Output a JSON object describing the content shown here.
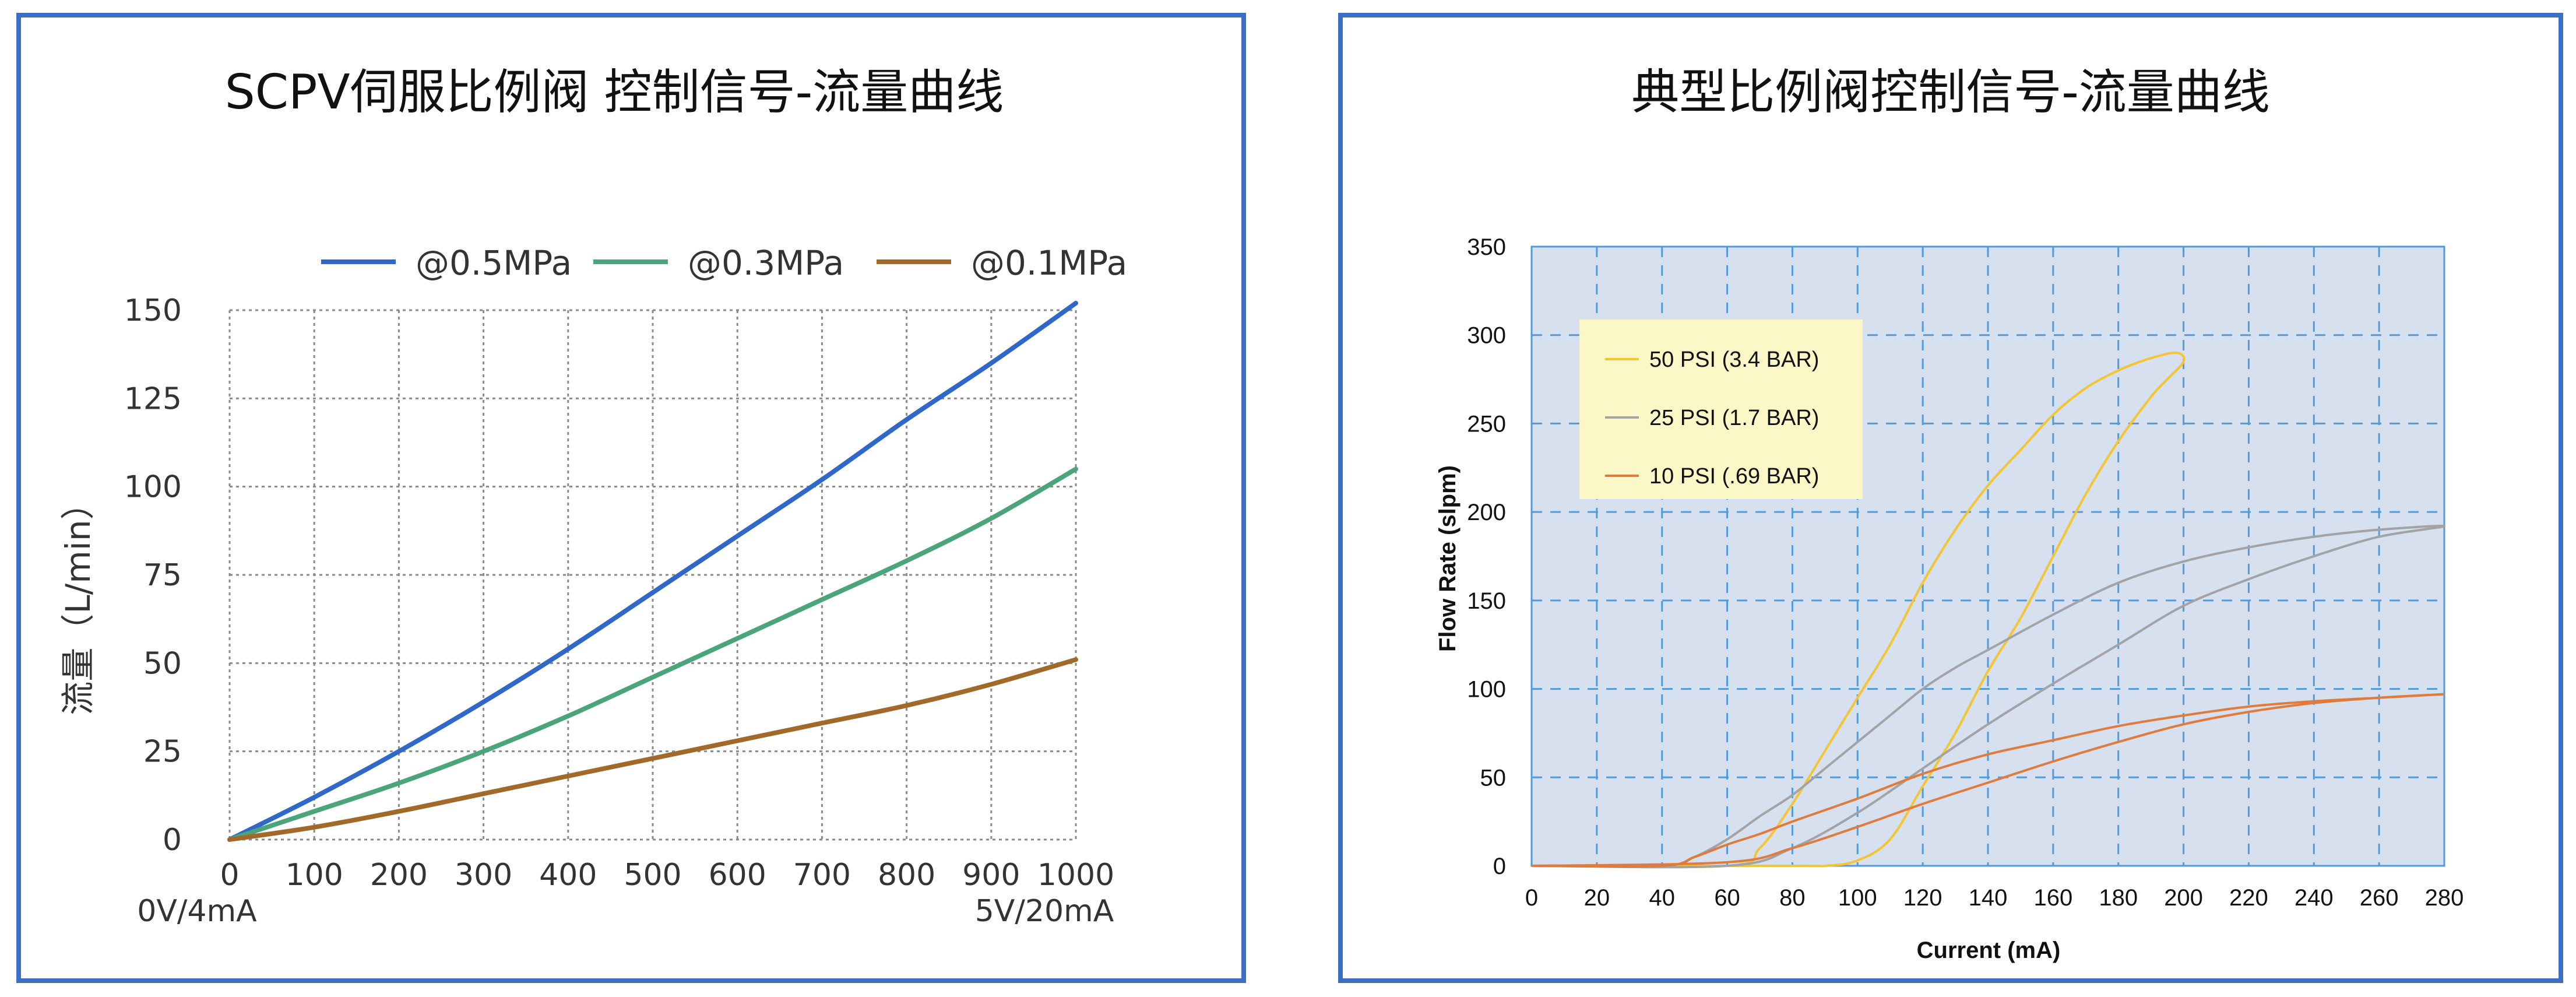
{
  "chart_data": [
    {
      "type": "line",
      "title": "SCPV伺服比例阀 控制信号-流量曲线",
      "xlabel": "",
      "ylabel": "流量（L/min）",
      "x_start_label": "0V/4mA",
      "x_end_label": "5V/20mA",
      "xlim": [
        0,
        1000
      ],
      "ylim": [
        0,
        150
      ],
      "xticks": [
        "0",
        "100",
        "200",
        "300",
        "400",
        "500",
        "600",
        "700",
        "800",
        "900",
        "1000"
      ],
      "yticks": [
        "0",
        "25",
        "50",
        "75",
        "100",
        "125",
        "150"
      ],
      "grid": true,
      "legend_position": "top",
      "colors": {
        "s1": "#2f68c9",
        "s2": "#4aa57a",
        "s3": "#a26a2a"
      },
      "x": [
        0,
        100,
        200,
        300,
        400,
        500,
        600,
        700,
        800,
        900,
        1000
      ],
      "series": [
        {
          "name": "@0.5MPa",
          "values": [
            0,
            12,
            25,
            39,
            54,
            70,
            86,
            102,
            119,
            135,
            152
          ]
        },
        {
          "name": "@0.3MPa",
          "values": [
            0,
            8,
            16,
            25,
            35,
            46,
            57,
            68,
            79,
            91,
            105
          ]
        },
        {
          "name": "@0.1MPa",
          "values": [
            0,
            3.5,
            8,
            13,
            18,
            23,
            28,
            33,
            38,
            44,
            51
          ]
        }
      ]
    },
    {
      "type": "line",
      "title": "典型比例阀控制信号-流量曲线",
      "xlabel": "Current (mA)",
      "ylabel": "Flow Rate (slpm)",
      "xlim": [
        0,
        280
      ],
      "ylim": [
        0,
        350
      ],
      "xticks": [
        "0",
        "20",
        "40",
        "60",
        "80",
        "100",
        "120",
        "140",
        "160",
        "180",
        "200",
        "220",
        "240",
        "260",
        "280"
      ],
      "yticks": [
        "0",
        "50",
        "100",
        "150",
        "200",
        "250",
        "300",
        "350"
      ],
      "grid": true,
      "legend_position": "top-left",
      "colors": {
        "plot_bg": "#d6e0ee",
        "grid": "#4e9be0",
        "s1": "#f4c431",
        "s2": "#a3a3a6",
        "s3": "#e07b3c",
        "legend_bg": "#fbf7c6"
      },
      "series": [
        {
          "name": "50 PSI (3.4 BAR)",
          "x": [
            0,
            60,
            70,
            80,
            90,
            100,
            110,
            120,
            130,
            140,
            150,
            160,
            170,
            180,
            190,
            198,
            200,
            195,
            190,
            180,
            170,
            160,
            150,
            140,
            130,
            120,
            110,
            100,
            90,
            80,
            0
          ],
          "values": [
            0,
            0,
            10,
            35,
            65,
            95,
            125,
            160,
            190,
            215,
            235,
            255,
            270,
            280,
            287,
            290,
            285,
            275,
            265,
            240,
            210,
            175,
            140,
            110,
            75,
            45,
            15,
            3,
            0,
            0,
            0
          ]
        },
        {
          "name": "25 PSI (1.7 BAR)",
          "x": [
            0,
            40,
            50,
            60,
            70,
            80,
            90,
            100,
            110,
            120,
            130,
            140,
            160,
            180,
            200,
            220,
            240,
            260,
            280,
            260,
            240,
            220,
            200,
            180,
            160,
            140,
            120,
            100,
            80,
            60,
            0
          ],
          "values": [
            0,
            0,
            5,
            15,
            28,
            40,
            55,
            70,
            85,
            100,
            112,
            122,
            142,
            160,
            172,
            180,
            186,
            190,
            192,
            186,
            175,
            162,
            147,
            125,
            103,
            80,
            55,
            30,
            10,
            0,
            0
          ]
        },
        {
          "name": "10 PSI (.69 BAR)",
          "x": [
            0,
            40,
            50,
            60,
            70,
            80,
            100,
            120,
            140,
            160,
            180,
            200,
            220,
            240,
            260,
            280,
            260,
            240,
            220,
            200,
            180,
            160,
            140,
            120,
            100,
            80,
            60,
            0
          ],
          "values": [
            0,
            0,
            5,
            12,
            18,
            25,
            38,
            52,
            63,
            71,
            79,
            85,
            90,
            93,
            95,
            97,
            95,
            92,
            87,
            80,
            70,
            59,
            47,
            35,
            22,
            10,
            2,
            0
          ]
        }
      ]
    }
  ]
}
